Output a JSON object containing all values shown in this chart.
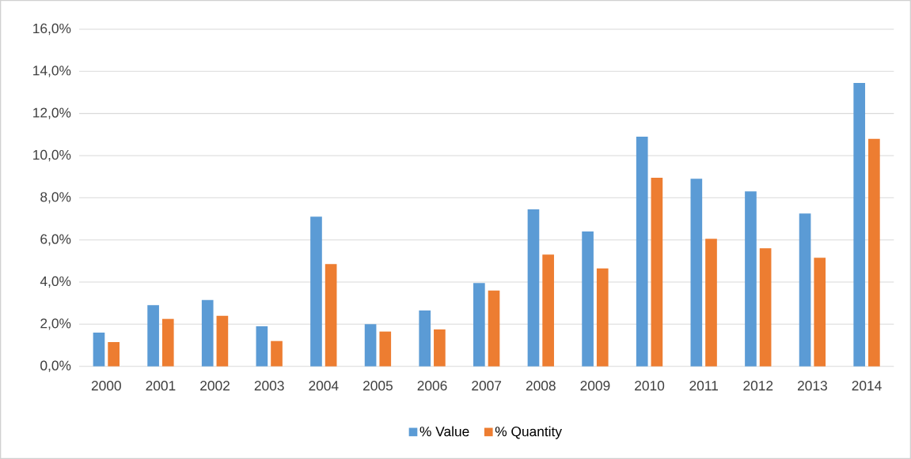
{
  "chart_data": {
    "type": "bar",
    "categories": [
      "2000",
      "2001",
      "2002",
      "2003",
      "2004",
      "2005",
      "2006",
      "2007",
      "2008",
      "2009",
      "2010",
      "2011",
      "2012",
      "2013",
      "2014"
    ],
    "series": [
      {
        "name": "% Value",
        "color": "#5b9bd5",
        "values": [
          1.6,
          2.9,
          3.15,
          1.9,
          7.1,
          2.0,
          2.65,
          3.95,
          7.45,
          6.4,
          10.9,
          8.9,
          8.3,
          7.25,
          13.45
        ]
      },
      {
        "name": "% Quantity",
        "color": "#ed7d31",
        "values": [
          1.15,
          2.25,
          2.4,
          1.2,
          4.85,
          1.65,
          1.75,
          3.6,
          5.3,
          4.65,
          8.95,
          6.05,
          5.6,
          5.15,
          10.8
        ]
      }
    ],
    "ylim": [
      0,
      16
    ],
    "yticks": [
      {
        "value": 0,
        "label": "0,0%"
      },
      {
        "value": 2,
        "label": "2,0%"
      },
      {
        "value": 4,
        "label": "4,0%"
      },
      {
        "value": 6,
        "label": "6,0%"
      },
      {
        "value": 8,
        "label": "8,0%"
      },
      {
        "value": 10,
        "label": "10,0%"
      },
      {
        "value": 12,
        "label": "12,0%"
      },
      {
        "value": 14,
        "label": "14,0%"
      },
      {
        "value": 16,
        "label": "16,0%"
      }
    ],
    "grid": "y",
    "legend": "bottom"
  }
}
